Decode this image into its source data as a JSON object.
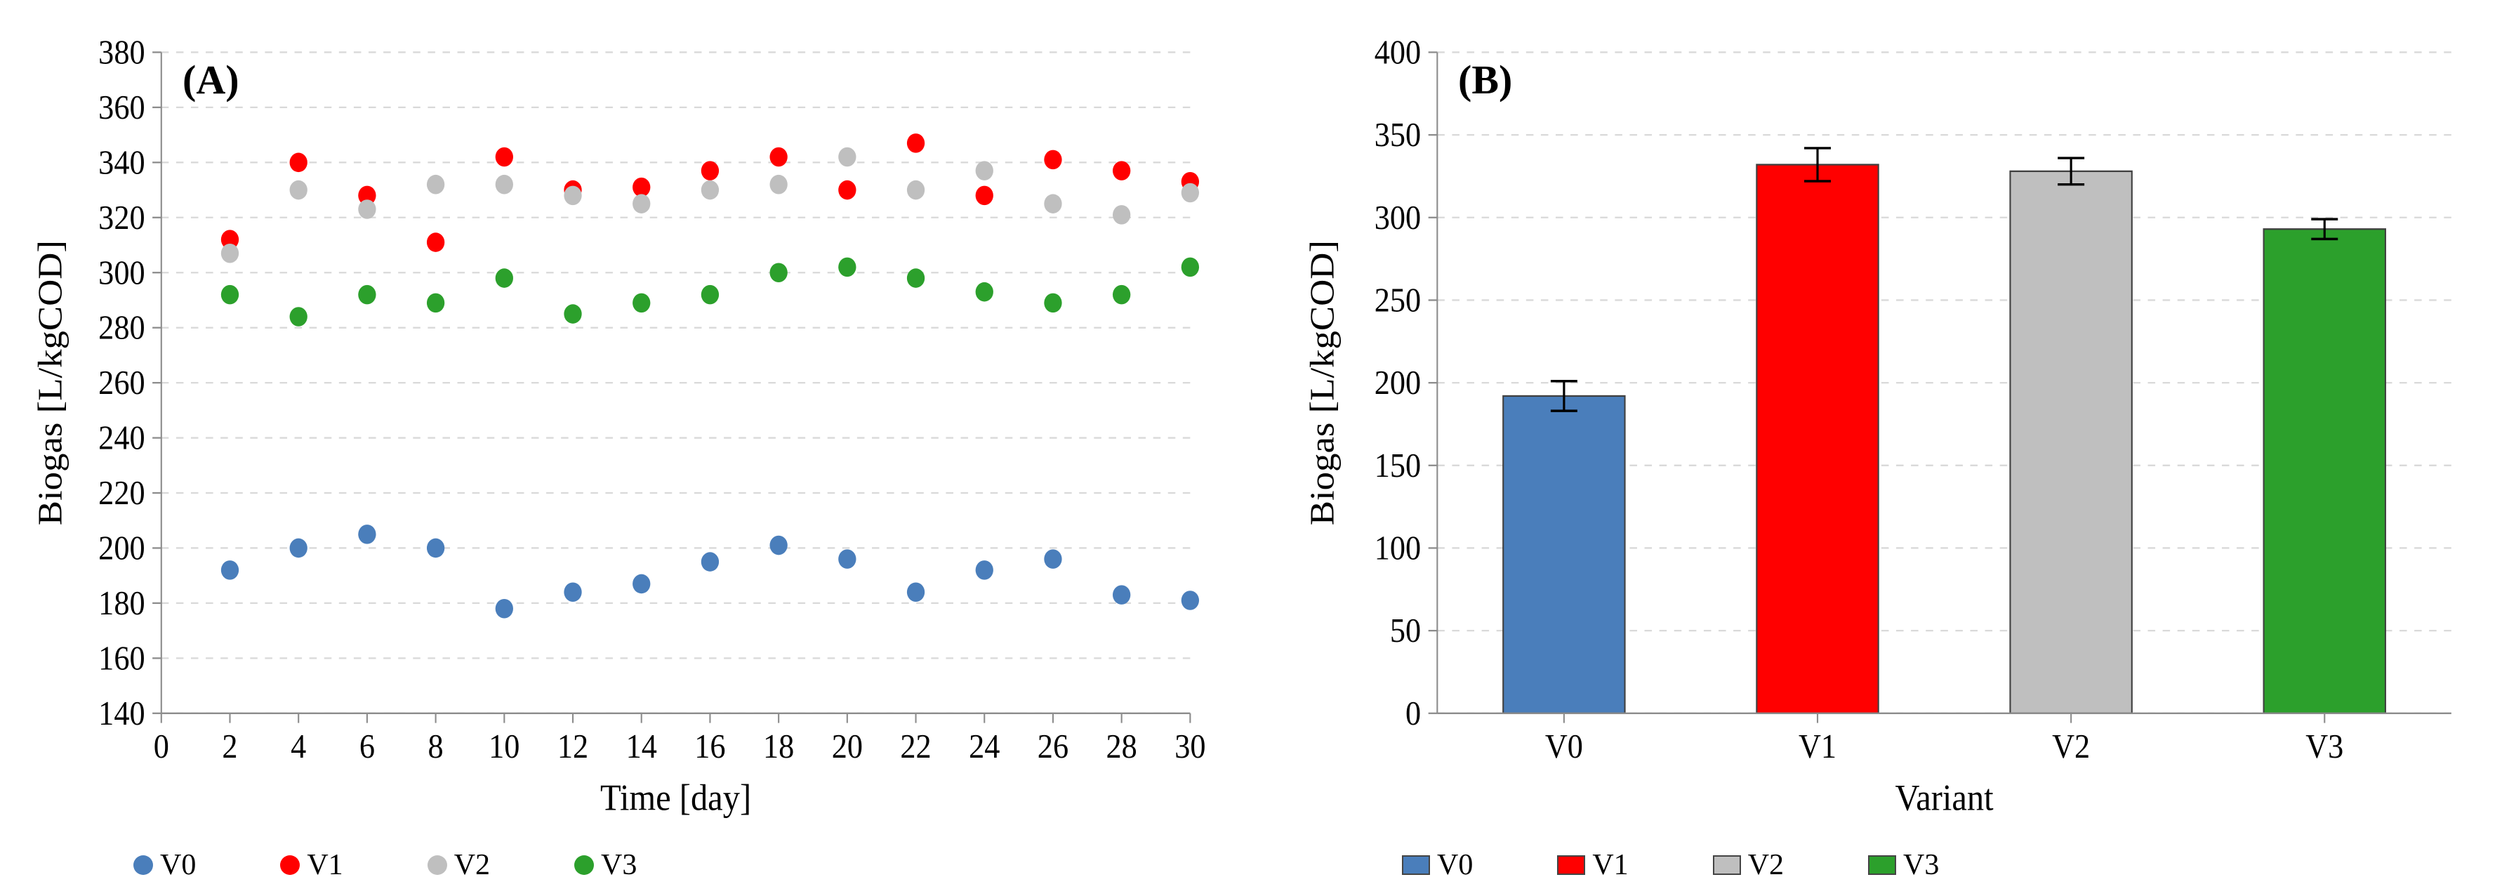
{
  "colors": {
    "V0": "#4a7ebb",
    "V1": "#ff0000",
    "V2": "#bfbfbf",
    "V3": "#2ca02c",
    "axis": "#8c8c8c",
    "grid": "#d9d9d9",
    "text": "#000000",
    "bg": "#ffffff"
  },
  "font": {
    "family": "Times New Roman",
    "axis_title_pt": 46,
    "tick_pt": 42,
    "legend_pt": 42,
    "panel_label_pt": 58
  },
  "panelA": {
    "label": "(A)",
    "type": "scatter",
    "xlabel": "Time [day]",
    "ylabel": "Biogas [L/kgCOD]",
    "xlim": [
      0,
      30
    ],
    "xticks": [
      0,
      2,
      4,
      6,
      8,
      10,
      12,
      14,
      16,
      18,
      20,
      22,
      24,
      26,
      28,
      30
    ],
    "ylim": [
      140,
      380
    ],
    "yticks": [
      140,
      160,
      180,
      200,
      220,
      240,
      260,
      280,
      300,
      320,
      340,
      360,
      380
    ],
    "marker_radius": 12,
    "grid": "dashed",
    "series": {
      "V0": {
        "color_key": "V0",
        "x": [
          2,
          4,
          6,
          8,
          10,
          12,
          14,
          16,
          18,
          20,
          22,
          24,
          26,
          28,
          30
        ],
        "y": [
          192,
          200,
          205,
          200,
          178,
          184,
          187,
          195,
          201,
          196,
          184,
          192,
          196,
          183,
          181
        ]
      },
      "V1": {
        "color_key": "V1",
        "x": [
          2,
          4,
          6,
          8,
          10,
          12,
          14,
          16,
          18,
          20,
          22,
          24,
          26,
          28,
          30
        ],
        "y": [
          312,
          340,
          328,
          311,
          342,
          330,
          331,
          337,
          342,
          330,
          347,
          328,
          341,
          337,
          333
        ]
      },
      "V2": {
        "color_key": "V2",
        "x": [
          2,
          4,
          6,
          8,
          10,
          12,
          14,
          16,
          18,
          20,
          22,
          24,
          26,
          28,
          30
        ],
        "y": [
          307,
          330,
          323,
          332,
          332,
          328,
          325,
          330,
          332,
          342,
          330,
          337,
          325,
          321,
          329
        ]
      },
      "V3": {
        "color_key": "V3",
        "x": [
          2,
          4,
          6,
          8,
          10,
          12,
          14,
          16,
          18,
          20,
          22,
          24,
          26,
          28,
          30
        ],
        "y": [
          292,
          284,
          292,
          289,
          298,
          285,
          289,
          292,
          300,
          302,
          298,
          293,
          289,
          292,
          302
        ]
      }
    }
  },
  "panelB": {
    "label": "(B)",
    "type": "bar",
    "xlabel": "Variant",
    "ylabel": "Biogas [L/kgCOD]",
    "categories": [
      "V0",
      "V1",
      "V2",
      "V3"
    ],
    "values": [
      192,
      332,
      328,
      293
    ],
    "errors": [
      9,
      10,
      8,
      6
    ],
    "bar_colors_keys": [
      "V0",
      "V1",
      "V2",
      "V3"
    ],
    "ylim": [
      0,
      400
    ],
    "yticks": [
      0,
      50,
      100,
      150,
      200,
      250,
      300,
      350,
      400
    ],
    "bar_width": 0.48,
    "grid": "dashed",
    "bar_border": "#404040"
  },
  "legend_order": [
    "V0",
    "V1",
    "V2",
    "V3"
  ],
  "legend_labels": {
    "V0": "V0",
    "V1": "V1",
    "V2": "V2",
    "V3": "V3"
  }
}
